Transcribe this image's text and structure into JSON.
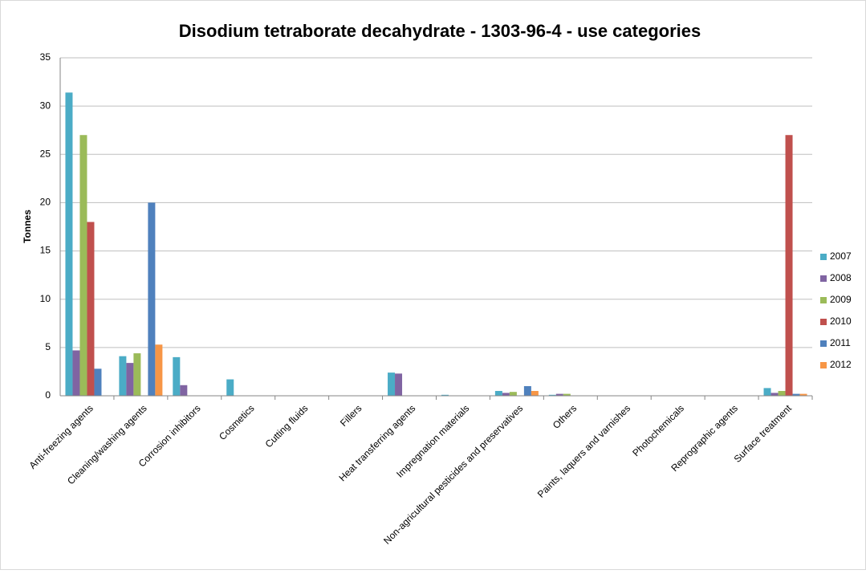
{
  "chart_data": {
    "type": "bar",
    "title": "Disodium tetraborate decahydrate - 1303-96-4 - use categories",
    "y_label": "Tonnes",
    "categories": [
      "Anti-freezing agents",
      "Cleaning/washing agents",
      "Corrosion inhibitors",
      "Cosmetics",
      "Cutting fluids",
      "Fillers",
      "Heat transferring agents",
      "Impregnation materials",
      "Non-agricultural pesticides and preservatives",
      "Others",
      "Paints, laquers and varnishes",
      "Photochemicals",
      "Reprographic agents",
      "Surface treatment"
    ],
    "series": [
      {
        "name": "2007",
        "color": "#4bacc6",
        "values": [
          31.4,
          4.1,
          4.0,
          1.7,
          0,
          0,
          2.4,
          0.1,
          0.5,
          0.1,
          0,
          0,
          0,
          0.8
        ]
      },
      {
        "name": "2008",
        "color": "#8064a2",
        "values": [
          4.7,
          3.4,
          1.1,
          0,
          0,
          0,
          2.3,
          0,
          0.3,
          0.2,
          0,
          0,
          0,
          0.3
        ]
      },
      {
        "name": "2009",
        "color": "#9bbb59",
        "values": [
          27,
          4.4,
          0,
          0,
          0,
          0,
          0,
          0,
          0.4,
          0.2,
          0,
          0,
          0,
          0.5
        ]
      },
      {
        "name": "2010",
        "color": "#c0504d",
        "values": [
          18,
          0,
          0,
          0,
          0,
          0,
          0,
          0,
          0,
          0,
          0,
          0,
          0,
          27
        ]
      },
      {
        "name": "2011",
        "color": "#4f81bd",
        "values": [
          2.8,
          20,
          0,
          0,
          0,
          0,
          0,
          0,
          1.0,
          0,
          0,
          0,
          0,
          0.2
        ]
      },
      {
        "name": "2012",
        "color": "#f79646",
        "values": [
          0,
          5.3,
          0,
          0,
          0,
          0,
          0,
          0,
          0.5,
          0,
          0,
          0,
          0,
          0.2
        ]
      }
    ],
    "ylim": [
      0,
      35
    ],
    "yticks": [
      0,
      5,
      10,
      15,
      20,
      25,
      30,
      35
    ],
    "grid": true,
    "legend": "right"
  }
}
